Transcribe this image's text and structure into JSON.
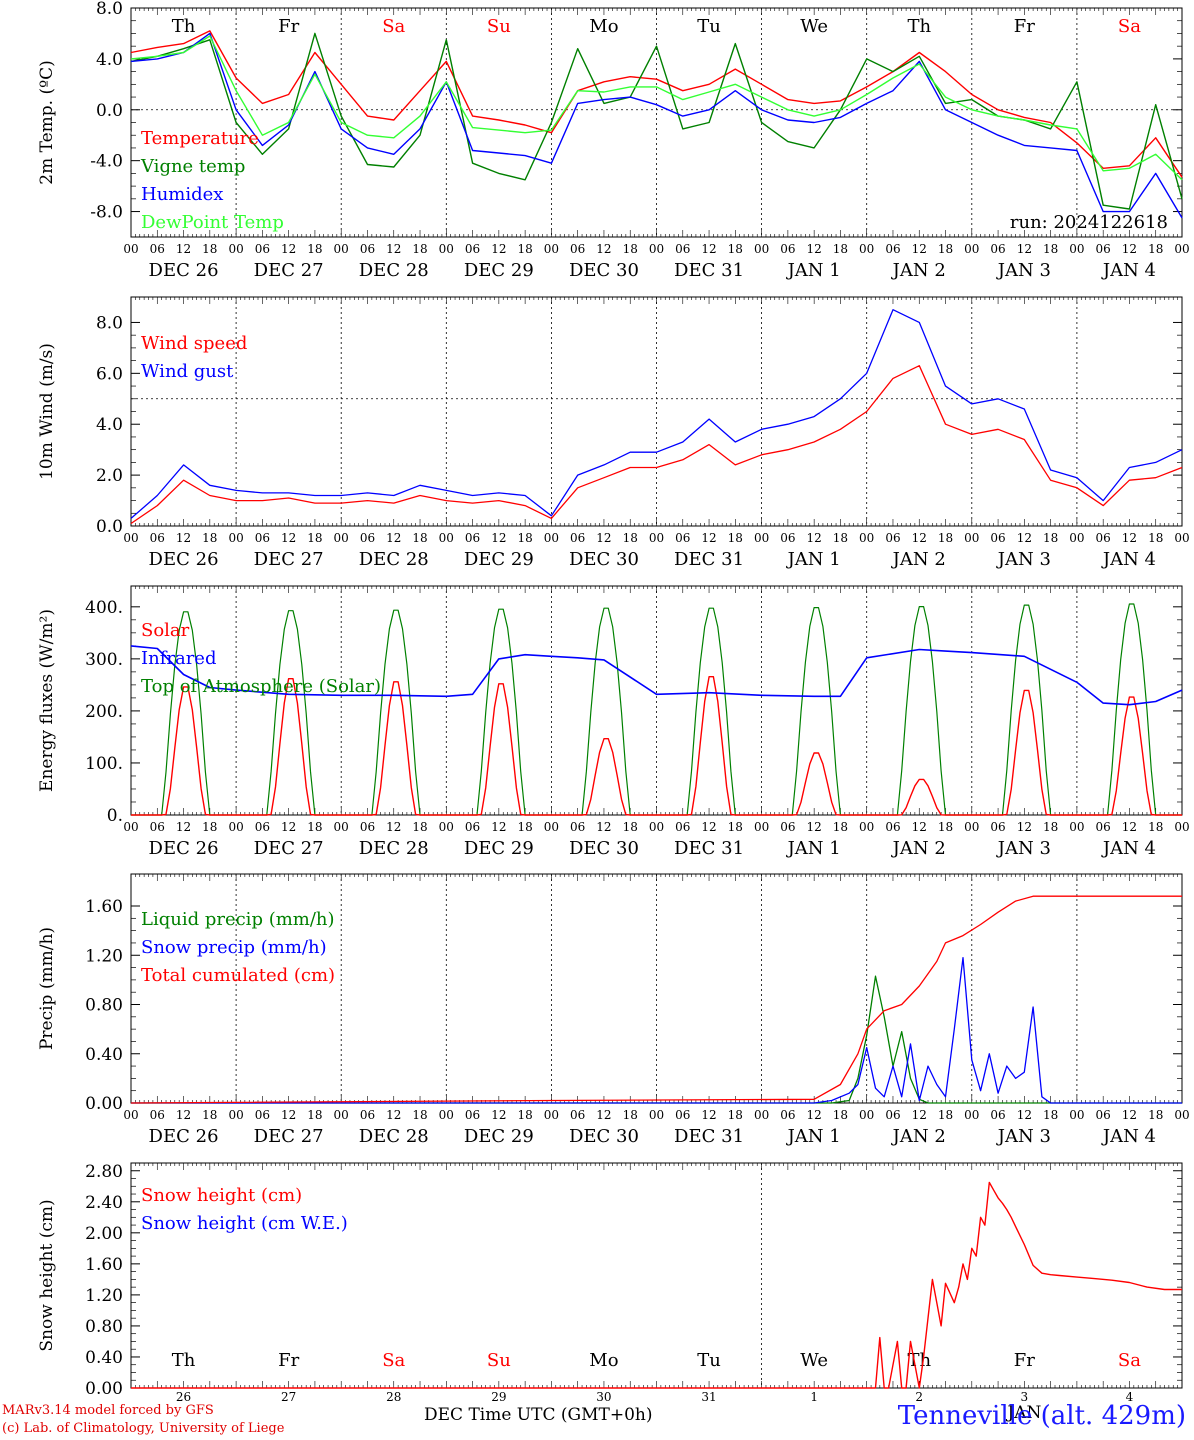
{
  "meta_text": {
    "run_label": "run: 2024122618",
    "credit_line1": "MARv3.14 model forced by GFS",
    "credit_line2": "(c) Lab. of Climatology, University of Liege",
    "station": "Tenneville (alt. 429m)",
    "x_axis_title": "DEC Time UTC (GMT+0h)",
    "month_last_panel": "JAN"
  },
  "colors": {
    "red": "#ff0000",
    "green": "#008000",
    "blue": "#0000ff",
    "lightgreen": "#33ff33",
    "weekend": "#ff0000",
    "weekday": "#000000"
  },
  "days": {
    "weekday_names": [
      "Th",
      "Fr",
      "Sa",
      "Su",
      "Mo",
      "Tu",
      "We",
      "Th",
      "Fr",
      "Sa"
    ],
    "weekend_flags": [
      false,
      false,
      true,
      true,
      false,
      false,
      false,
      false,
      false,
      true
    ],
    "date_labels": [
      "DEC 26",
      "DEC 27",
      "DEC 28",
      "DEC 29",
      "DEC 30",
      "DEC 31",
      "JAN  1",
      "JAN  2",
      "JAN  3",
      "JAN  4"
    ],
    "day_numbers": [
      "26",
      "27",
      "28",
      "29",
      "30",
      "31",
      "1",
      "2",
      "3",
      "4"
    ],
    "hour_ticks": [
      "00",
      "06",
      "12",
      "18"
    ],
    "hour_end": "00"
  },
  "chart_data": [
    {
      "type": "line",
      "ylabel": "2m Temp. (ºC)",
      "ylim": [
        -10,
        8
      ],
      "yticks": [
        "8.0",
        "4.0",
        "0.0",
        "-4.0",
        "-8.0"
      ],
      "ytick_values": [
        8,
        4,
        0,
        -4,
        -8
      ],
      "ref_line": 0,
      "x_hours": [
        0,
        6,
        12,
        18,
        24,
        30,
        36,
        42,
        48,
        54,
        60,
        66,
        72,
        78,
        84,
        90,
        96,
        102,
        108,
        114,
        120,
        126,
        132,
        138,
        144,
        150,
        156,
        162,
        168,
        174,
        180,
        186,
        192,
        198,
        204,
        210,
        216,
        222,
        228,
        234,
        240
      ],
      "series": [
        {
          "name": "Temperature",
          "color_key": "red",
          "values": [
            4.5,
            4.9,
            5.2,
            6.2,
            2.5,
            0.5,
            1.2,
            4.5,
            2.0,
            -0.5,
            -0.8,
            1.5,
            3.8,
            -0.5,
            -0.8,
            -1.2,
            -1.8,
            1.5,
            2.2,
            2.6,
            2.4,
            1.5,
            2.0,
            3.2,
            2.0,
            0.8,
            0.5,
            0.7,
            1.8,
            3.0,
            4.5,
            3.0,
            1.2,
            0.0,
            -0.6,
            -1.0,
            -2.6,
            -4.6,
            -4.4,
            -2.2,
            -5.3
          ]
        },
        {
          "name": "Vigne temp",
          "color_key": "green",
          "values": [
            3.8,
            4.2,
            4.8,
            5.5,
            -1.0,
            -3.5,
            -1.5,
            6.0,
            -0.5,
            -4.3,
            -4.5,
            -2.0,
            5.5,
            -4.2,
            -5.0,
            -5.5,
            -1.0,
            4.8,
            0.5,
            1.0,
            5.0,
            -1.5,
            -1.0,
            5.2,
            -1.0,
            -2.5,
            -3.0,
            0.0,
            4.0,
            3.0,
            4.2,
            0.5,
            0.8,
            -0.5,
            -0.8,
            -1.5,
            2.2,
            -7.5,
            -7.8,
            0.4,
            -7.0
          ]
        },
        {
          "name": "Humidex",
          "color_key": "blue",
          "values": [
            3.8,
            4.0,
            4.5,
            6.0,
            0.0,
            -2.8,
            -1.2,
            3.0,
            -1.5,
            -3.0,
            -3.5,
            -1.5,
            2.2,
            -3.2,
            -3.4,
            -3.6,
            -4.2,
            0.5,
            0.8,
            1.0,
            0.4,
            -0.5,
            0.0,
            1.5,
            0.0,
            -0.8,
            -1.0,
            -0.6,
            0.5,
            1.5,
            3.8,
            0.0,
            -1.0,
            -2.0,
            -2.8,
            -3.0,
            -3.2,
            -8.0,
            -8.0,
            -5.0,
            -8.5
          ]
        },
        {
          "name": "DewPoint Temp",
          "color_key": "lightgreen",
          "values": [
            4.0,
            4.2,
            4.5,
            5.8,
            1.5,
            -2.0,
            -1.0,
            2.8,
            -1.0,
            -2.0,
            -2.2,
            -0.5,
            2.2,
            -1.4,
            -1.6,
            -1.8,
            -1.6,
            1.5,
            1.4,
            1.8,
            1.8,
            0.8,
            1.4,
            2.0,
            1.0,
            0.0,
            -0.5,
            0.0,
            1.2,
            2.5,
            3.6,
            1.0,
            0.0,
            -0.5,
            -0.8,
            -1.2,
            -1.5,
            -4.8,
            -4.6,
            -3.5,
            -5.5
          ]
        }
      ]
    },
    {
      "type": "line",
      "ylabel": "10m Wind (m/s)",
      "ylim": [
        0,
        9
      ],
      "yticks": [
        "8.0",
        "6.0",
        "4.0",
        "2.0",
        "0.0"
      ],
      "ytick_values": [
        8,
        6,
        4,
        2,
        0
      ],
      "ref_line": 5,
      "x_hours": [
        0,
        6,
        12,
        18,
        24,
        30,
        36,
        42,
        48,
        54,
        60,
        66,
        72,
        78,
        84,
        90,
        96,
        102,
        108,
        114,
        120,
        126,
        132,
        138,
        144,
        150,
        156,
        162,
        168,
        174,
        180,
        186,
        192,
        198,
        204,
        210,
        216,
        222,
        228,
        234,
        240
      ],
      "series": [
        {
          "name": "Wind speed",
          "color_key": "red",
          "values": [
            0.1,
            0.8,
            1.8,
            1.2,
            1.0,
            1.0,
            1.1,
            0.9,
            0.9,
            1.0,
            0.9,
            1.2,
            1.0,
            0.9,
            1.0,
            0.8,
            0.3,
            1.5,
            1.9,
            2.3,
            2.3,
            2.6,
            3.2,
            2.4,
            2.8,
            3.0,
            3.3,
            3.8,
            4.5,
            5.8,
            6.3,
            4.0,
            3.6,
            3.8,
            3.4,
            1.8,
            1.5,
            0.8,
            1.8,
            1.9,
            2.3
          ]
        },
        {
          "name": "Wind gust",
          "color_key": "blue",
          "values": [
            0.3,
            1.2,
            2.4,
            1.6,
            1.4,
            1.3,
            1.3,
            1.2,
            1.2,
            1.3,
            1.2,
            1.6,
            1.4,
            1.2,
            1.3,
            1.2,
            0.4,
            2.0,
            2.4,
            2.9,
            2.9,
            3.3,
            4.2,
            3.3,
            3.8,
            4.0,
            4.3,
            5.0,
            6.0,
            8.5,
            8.0,
            5.5,
            4.8,
            5.0,
            4.6,
            2.2,
            1.9,
            1.0,
            2.3,
            2.5,
            3.0
          ]
        }
      ]
    },
    {
      "type": "line",
      "ylabel": "Energy fluxes (W/m²)",
      "ylim": [
        0,
        440
      ],
      "yticks": [
        "400.",
        "300.",
        "200.",
        "100.",
        "0."
      ],
      "ytick_values": [
        400,
        300,
        200,
        100,
        0
      ],
      "diurnal_peaks": {
        "solar": [
          252,
          268,
          262,
          258,
          150,
          272,
          122,
          70,
          245,
          232
        ],
        "toa": [
          395,
          397,
          398,
          400,
          402,
          402,
          403,
          405,
          408,
          410
        ]
      },
      "series": [
        {
          "name": "Solar",
          "color_key": "red"
        },
        {
          "name": "Infrared",
          "color_key": "blue",
          "x_hours": [
            0,
            6,
            12,
            18,
            24,
            36,
            48,
            60,
            72,
            78,
            84,
            90,
            96,
            102,
            108,
            120,
            132,
            144,
            156,
            162,
            168,
            180,
            186,
            192,
            204,
            216,
            222,
            228,
            234,
            240
          ],
          "values": [
            325,
            320,
            270,
            245,
            240,
            232,
            230,
            230,
            228,
            232,
            300,
            308,
            305,
            302,
            298,
            232,
            235,
            230,
            228,
            228,
            302,
            318,
            315,
            312,
            305,
            255,
            215,
            212,
            218,
            240
          ]
        },
        {
          "name": "Top of Atmosphere (Solar)",
          "color_key": "green"
        }
      ]
    },
    {
      "type": "line",
      "ylabel": "Precip (mm/h)",
      "ylim": [
        0,
        1.86
      ],
      "yticks": [
        "1.60",
        "1.20",
        "0.80",
        "0.40",
        "0.00"
      ],
      "ytick_values": [
        1.6,
        1.2,
        0.8,
        0.4,
        0.0
      ],
      "series": [
        {
          "name": "Liquid precip (mm/h)",
          "color_key": "green",
          "x_hours": [
            0,
            160,
            164,
            166,
            168,
            170,
            172,
            174,
            176,
            178,
            180,
            182,
            184,
            240
          ],
          "values": [
            0,
            0,
            0.02,
            0.2,
            0.55,
            1.03,
            0.7,
            0.3,
            0.58,
            0.2,
            0.03,
            0.0,
            0.0,
            0
          ]
        },
        {
          "name": "Snow precip (mm/h)",
          "color_key": "blue",
          "x_hours": [
            0,
            156,
            160,
            164,
            166,
            168,
            170,
            172,
            174,
            176,
            178,
            180,
            182,
            184,
            186,
            188,
            190,
            192,
            194,
            196,
            198,
            200,
            202,
            204,
            206,
            208,
            210,
            212,
            240
          ],
          "values": [
            0,
            0,
            0.02,
            0.08,
            0.15,
            0.45,
            0.12,
            0.05,
            0.3,
            0.05,
            0.48,
            0.02,
            0.3,
            0.15,
            0.05,
            0.6,
            1.18,
            0.35,
            0.1,
            0.4,
            0.08,
            0.3,
            0.2,
            0.25,
            0.78,
            0.05,
            0.0,
            0.0,
            0
          ]
        },
        {
          "name": "Total cumulated (cm)",
          "color_key": "red",
          "x_hours": [
            0,
            96,
            156,
            162,
            166,
            168,
            172,
            176,
            180,
            184,
            186,
            190,
            194,
            198,
            202,
            206,
            210,
            214,
            240
          ],
          "values": [
            0.0,
            0.02,
            0.03,
            0.15,
            0.4,
            0.6,
            0.75,
            0.8,
            0.95,
            1.15,
            1.3,
            1.36,
            1.45,
            1.55,
            1.64,
            1.68,
            1.68,
            1.68,
            1.68
          ]
        }
      ]
    },
    {
      "type": "line",
      "ylabel": "Snow height (cm)",
      "ylim": [
        0,
        2.9
      ],
      "yticks": [
        "2.80",
        "2.40",
        "2.00",
        "1.60",
        "1.20",
        "0.80",
        "0.40",
        "0.00"
      ],
      "ytick_values": [
        2.8,
        2.4,
        2.0,
        1.6,
        1.2,
        0.8,
        0.4,
        0.0
      ],
      "series": [
        {
          "name": "Snow height (cm)",
          "color_key": "red",
          "x_hours": [
            0,
            170,
            171,
            172,
            173,
            175,
            176,
            177,
            178,
            180,
            181,
            182,
            183,
            184,
            185,
            186,
            188,
            189,
            190,
            191,
            192,
            193,
            194,
            195,
            196,
            197,
            198,
            199,
            200,
            201,
            202,
            204,
            206,
            208,
            210,
            212,
            216,
            220,
            224,
            228,
            232,
            236,
            240
          ],
          "values": [
            0,
            0,
            0.65,
            0,
            0,
            0.6,
            0,
            0,
            0.6,
            0,
            0.4,
            0.9,
            1.4,
            1.1,
            0.8,
            1.35,
            1.1,
            1.3,
            1.6,
            1.4,
            1.8,
            1.7,
            2.2,
            2.1,
            2.65,
            2.55,
            2.45,
            2.38,
            2.3,
            2.2,
            2.08,
            1.85,
            1.58,
            1.48,
            1.46,
            1.45,
            1.43,
            1.41,
            1.39,
            1.36,
            1.3,
            1.27,
            1.27
          ]
        },
        {
          "name": "Snow height (cm W.E.)",
          "color_key": "blue"
        }
      ]
    }
  ]
}
